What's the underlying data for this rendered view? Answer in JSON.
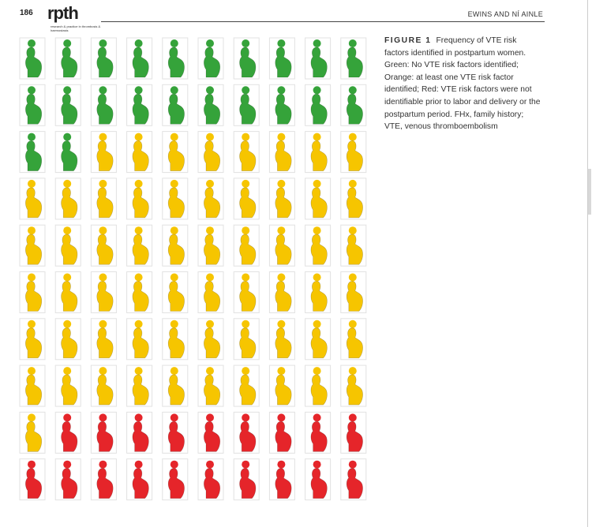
{
  "header": {
    "page_number": "186",
    "logo": "rpth",
    "logo_subtitle": "research & practice in thrombosis & haemostasis",
    "authors": "EWINS AND NÍ AINLE"
  },
  "figure": {
    "label": "FIGURE 1",
    "caption": "Frequency of VTE risk factors identified in postpartum women. Green: No VTE risk factors identified; Orange: at least one VTE risk factor identified; Red: VTE risk factors were not identifiable prior to labor and delivery or the postpartum period. FHx, family history; VTE, venous thromboembolism"
  },
  "pictogram": {
    "columns": 10,
    "groups": [
      {
        "count": 22,
        "color": "#35a33a"
      },
      {
        "count": 59,
        "color": "#f6c500"
      },
      {
        "count": 19,
        "color": "#e5252a"
      }
    ]
  }
}
